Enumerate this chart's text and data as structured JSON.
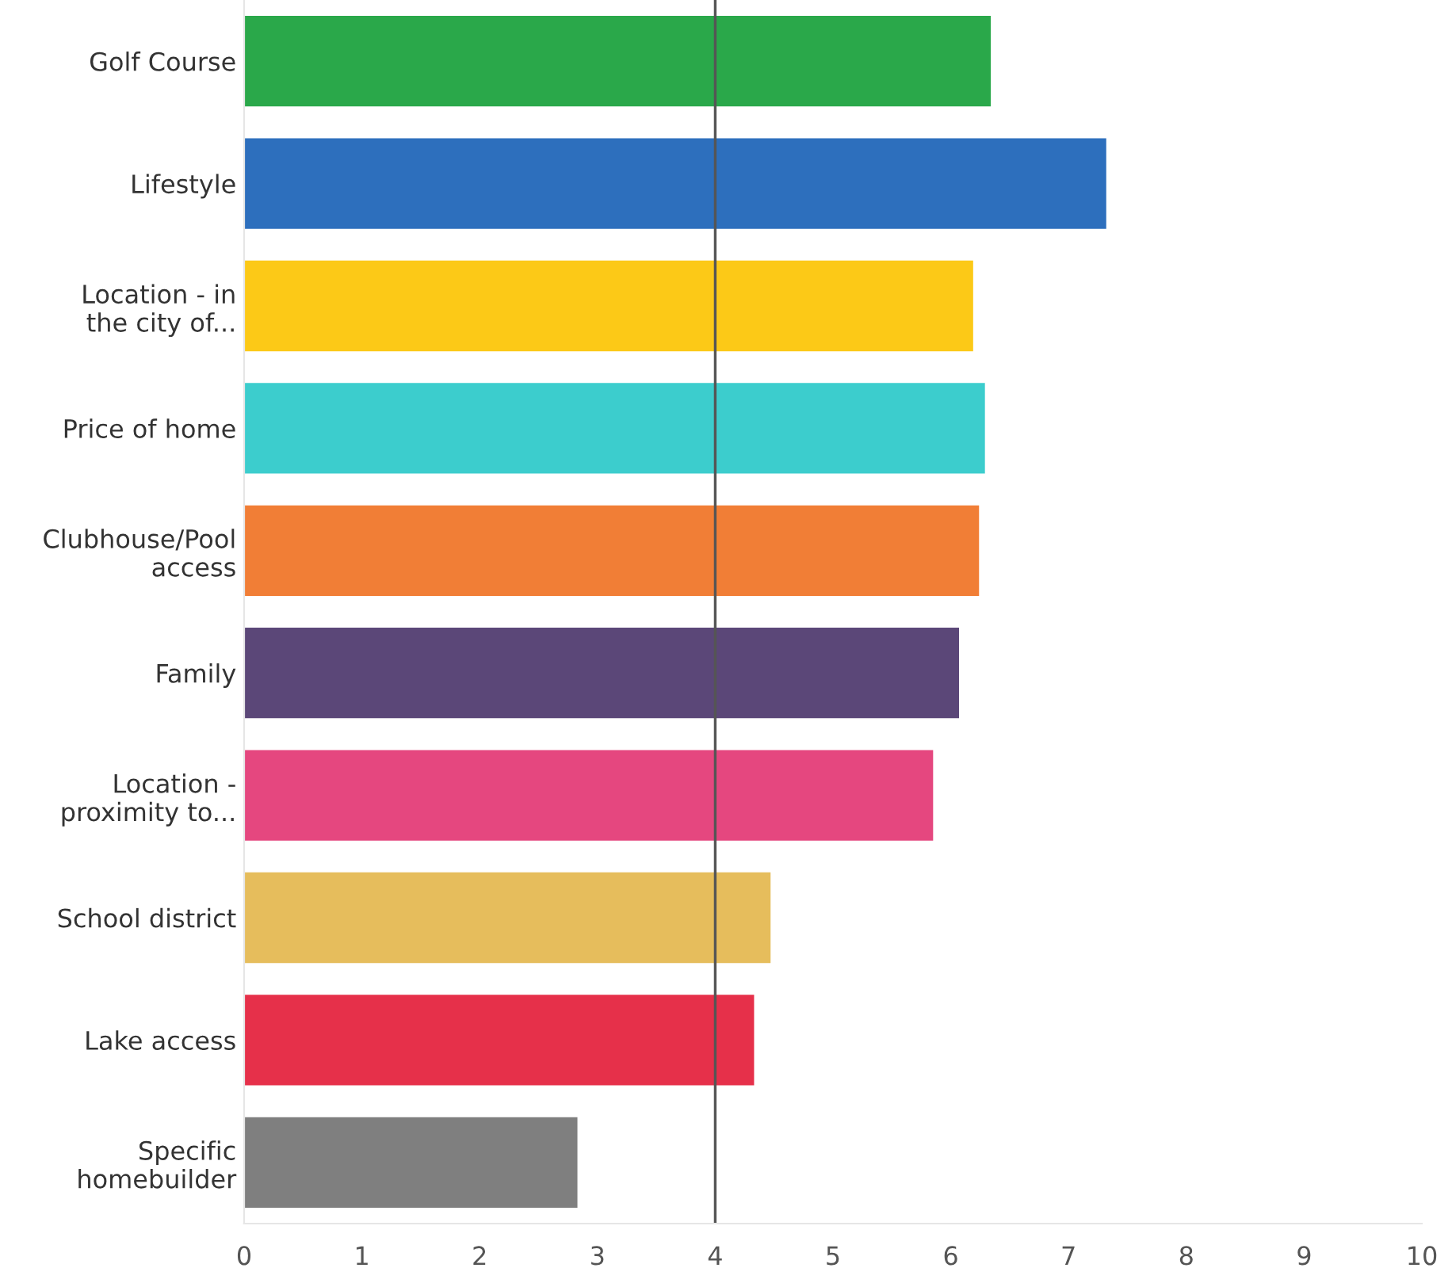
{
  "chart_data": {
    "type": "bar",
    "orientation": "horizontal",
    "categories": [
      "Golf Course",
      "Lifestyle",
      "Location - in\nthe city of...",
      "Price of home",
      "Clubhouse/Pool\naccess",
      "Family",
      "Location -\nproximity to...",
      "School district",
      "Lake access",
      "Specific\nhomebuilder"
    ],
    "values": [
      6.34,
      7.32,
      6.19,
      6.29,
      6.24,
      6.07,
      5.85,
      4.47,
      4.33,
      2.83
    ],
    "colors": [
      "#2aa84a",
      "#2d6fbd",
      "#fcc917",
      "#3ccdcd",
      "#f17e36",
      "#5b4778",
      "#e5477f",
      "#e6bd5c",
      "#e6304a",
      "#7f7f7f"
    ],
    "xlim": [
      0,
      10
    ],
    "xticks": [
      0,
      1,
      2,
      3,
      4,
      5,
      6,
      7,
      8,
      9,
      10
    ],
    "grid": false,
    "ref_lines": [
      {
        "axis": "x",
        "value": 4,
        "color": "#555555"
      }
    ]
  }
}
